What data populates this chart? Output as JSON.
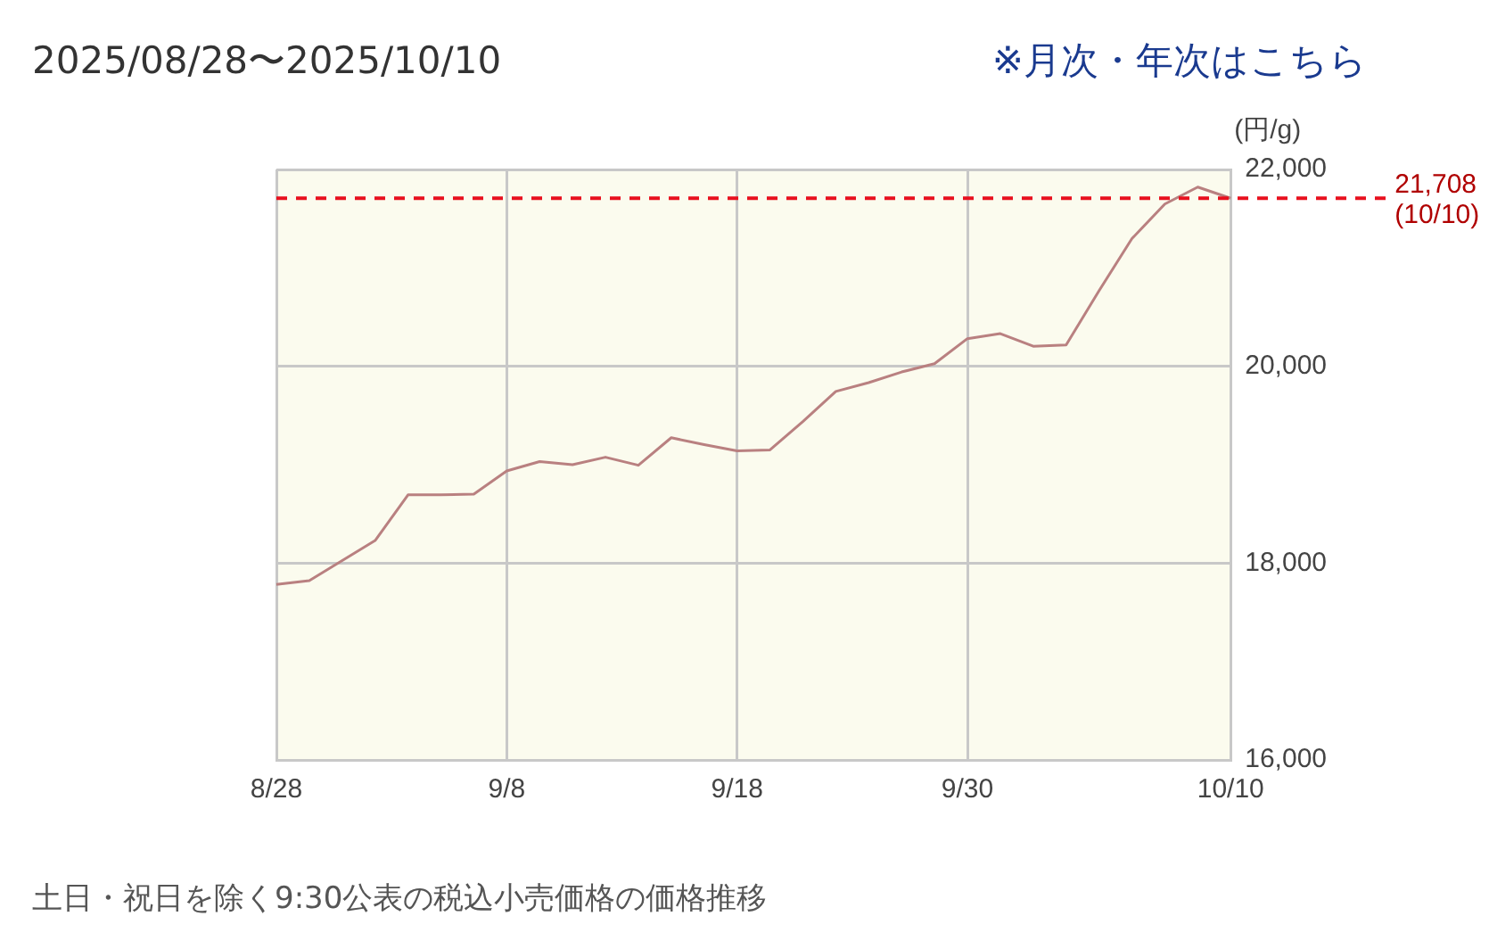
{
  "chart_data": {
    "type": "line",
    "title": "2025/08/28〜2025/10/10",
    "ylabel": "(円/g)",
    "annotations": [
      "※月次・年次はこちら",
      "土日・祝日を除く9:30公表の税込小売価格の価格推移"
    ],
    "categories": [
      "8/28",
      null,
      null,
      null,
      null,
      null,
      null,
      "9/8",
      null,
      null,
      null,
      null,
      null,
      null,
      "9/18",
      null,
      null,
      null,
      null,
      null,
      null,
      "9/30",
      null,
      null,
      null,
      null,
      null,
      null,
      null,
      "10/10"
    ],
    "series": [
      {
        "color": "#b98080",
        "values": [
          17783,
          17822,
          18025,
          18229,
          18694,
          18694,
          18700,
          18936,
          19032,
          19000,
          19076,
          18994,
          19274,
          19204,
          19140,
          19150,
          19438,
          19744,
          19834,
          19942,
          20026,
          20281,
          20332,
          20204,
          20217,
          20767,
          21297,
          21649,
          21821,
          21708
        ]
      }
    ],
    "ylim": [
      16000,
      22000
    ],
    "yticks": [
      {
        "value": 16000,
        "label": "16,000"
      },
      {
        "value": 18000,
        "label": "18,000"
      },
      {
        "value": 20000,
        "label": "20,000"
      },
      {
        "value": 22000,
        "label": "22,000"
      }
    ],
    "ref_lines": [
      {
        "axis": "y",
        "value": 21708,
        "label": "21,708\n(10/10)",
        "color": "#e8101e",
        "line_style": "dashed"
      }
    ],
    "grid": true,
    "legend": false,
    "marker": "none",
    "line_style": "solid"
  }
}
